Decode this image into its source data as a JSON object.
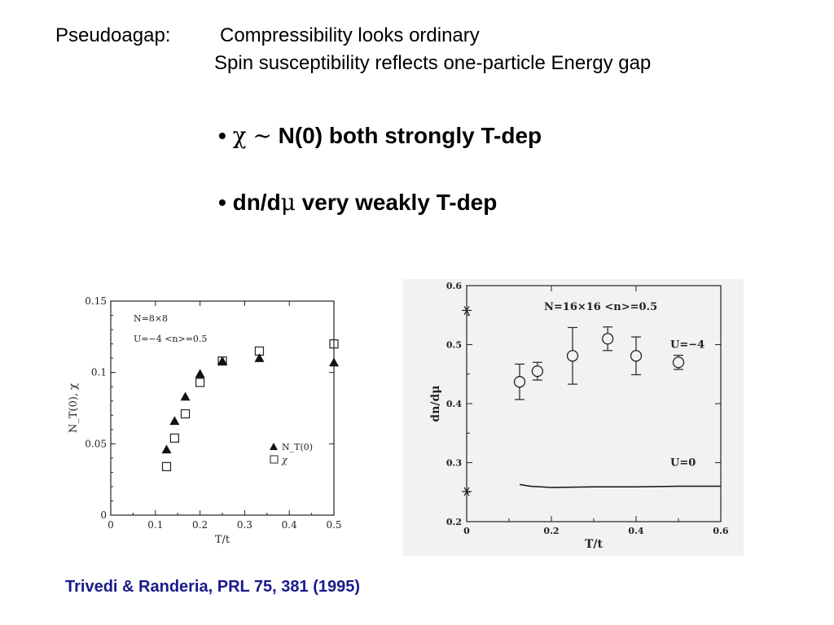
{
  "header": {
    "label": "Pseudoagap:",
    "line1": "Compressibility looks ordinary",
    "line2": "Spin susceptibility reflects one-particle Energy gap"
  },
  "bullets": [
    {
      "dot": "•",
      "chi": "χ",
      "tilde": "~",
      "text": "N(0)  both strongly T-dep"
    },
    {
      "dot": "•",
      "pre": "dn/d",
      "mu": "μ",
      "text": "very weakly T-dep"
    }
  ],
  "citation": "Trivedi & Randeria, PRL 75, 381 (1995)",
  "chart_data": [
    {
      "type": "scatter",
      "xlabel": "T/t",
      "ylabel": "N_T(0), χ",
      "xlim": [
        0,
        0.5
      ],
      "ylim": [
        0,
        0.15
      ],
      "xticks": [
        "0",
        "0.1",
        "0.2",
        "0.3",
        "0.4",
        "0.5"
      ],
      "yticks": [
        "0",
        "0.05",
        "0.1",
        "0.15"
      ],
      "annotations": [
        "N=8×8",
        "U=−4 <n>=0.5"
      ],
      "legend_position": "bottom-right",
      "grid": false,
      "series": [
        {
          "name": "N_T(0)",
          "marker": "filled-triangle",
          "x": [
            0.125,
            0.143,
            0.167,
            0.2,
            0.25,
            0.333,
            0.5
          ],
          "y": [
            0.046,
            0.066,
            0.083,
            0.099,
            0.108,
            0.11,
            0.107
          ]
        },
        {
          "name": "χ",
          "marker": "open-square",
          "x": [
            0.125,
            0.143,
            0.167,
            0.2,
            0.25,
            0.333,
            0.5
          ],
          "y": [
            0.034,
            0.054,
            0.071,
            0.093,
            0.108,
            0.115,
            0.12
          ]
        }
      ]
    },
    {
      "type": "scatter",
      "xlabel": "T/t",
      "ylabel": "dn/dμ",
      "xlim": [
        0,
        0.6
      ],
      "ylim": [
        0.2,
        0.6
      ],
      "xticks": [
        "0",
        "0.2",
        "0.4",
        "0.6"
      ],
      "yticks": [
        "0.2",
        "0.3",
        "0.4",
        "0.5",
        "0.6"
      ],
      "annotations": [
        "N=16×16   <n>=0.5",
        "U=−4",
        "U=0"
      ],
      "grid": false,
      "series": [
        {
          "marker": "open-circle-errorbar",
          "x": [
            0.125,
            0.167,
            0.25,
            0.333,
            0.4,
            0.5
          ],
          "y": [
            0.437,
            0.455,
            0.481,
            0.51,
            0.481,
            0.47
          ],
          "err": [
            0.03,
            0.015,
            0.048,
            0.02,
            0.032,
            0.012
          ]
        },
        {
          "marker": "asterisk",
          "x": [
            0,
            0
          ],
          "y": [
            0.558,
            0.251
          ]
        },
        {
          "marker": "line",
          "x": [
            0.125,
            0.15,
            0.2,
            0.3,
            0.4,
            0.5,
            0.6
          ],
          "y": [
            0.263,
            0.26,
            0.258,
            0.259,
            0.259,
            0.26,
            0.26
          ]
        }
      ]
    }
  ]
}
